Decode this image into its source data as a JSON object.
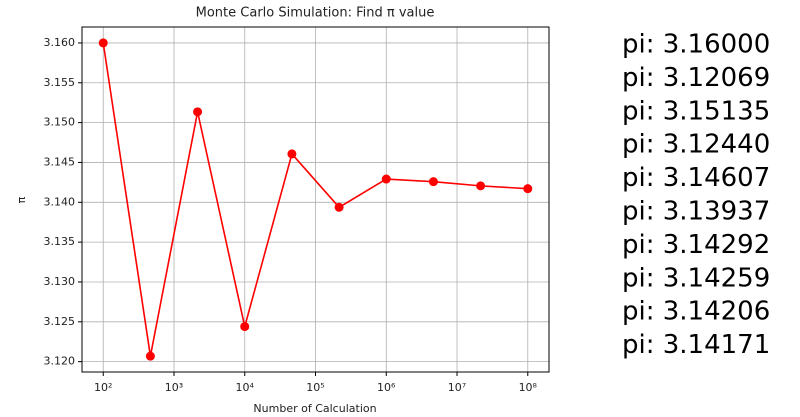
{
  "chart_data": {
    "type": "line",
    "title": "Monte Carlo Simulation: Find π value",
    "x_label": "Number of Calculation",
    "y_label": "π",
    "x_scale": "log",
    "grid": true,
    "x": [
      100,
      464.16,
      2154.43,
      10000,
      46415.89,
      215443.47,
      1000000,
      4641588.83,
      21544346.9,
      100000000
    ],
    "series": [
      {
        "color": "#ff0000",
        "values": [
          3.16,
          3.12069,
          3.15135,
          3.1244,
          3.14607,
          3.13937,
          3.14292,
          3.14259,
          3.14206,
          3.14171
        ],
        "value_labels": [
          "pi: 3.16000",
          "pi: 3.12069",
          "pi: 3.15135",
          "pi: 3.12440",
          "pi: 3.14607",
          "pi: 3.13937",
          "pi: 3.14292",
          "pi: 3.14259",
          "pi: 3.14206",
          "pi: 3.14171"
        ]
      }
    ],
    "xlim": [
      50.1,
      199500000
    ],
    "xticks": [
      {
        "value": 100,
        "label": "10²"
      },
      {
        "value": 1000,
        "label": "10³"
      },
      {
        "value": 10000,
        "label": "10⁴"
      },
      {
        "value": 100000,
        "label": "10⁵"
      },
      {
        "value": 1000000,
        "label": "10⁶"
      },
      {
        "value": 10000000,
        "label": "10⁷"
      },
      {
        "value": 100000000,
        "label": "10⁸"
      }
    ],
    "ylim": [
      3.1187,
      3.162
    ],
    "yticks": [
      {
        "value": 3.12,
        "label": "3.120"
      },
      3.125,
      {
        "value": 3.13,
        "label": "3.130"
      },
      3.135,
      {
        "value": 3.14,
        "label": "3.140"
      },
      3.145,
      {
        "value": 3.15,
        "label": "3.150"
      },
      3.155,
      {
        "value": 3.16,
        "label": "3.160"
      }
    ]
  }
}
